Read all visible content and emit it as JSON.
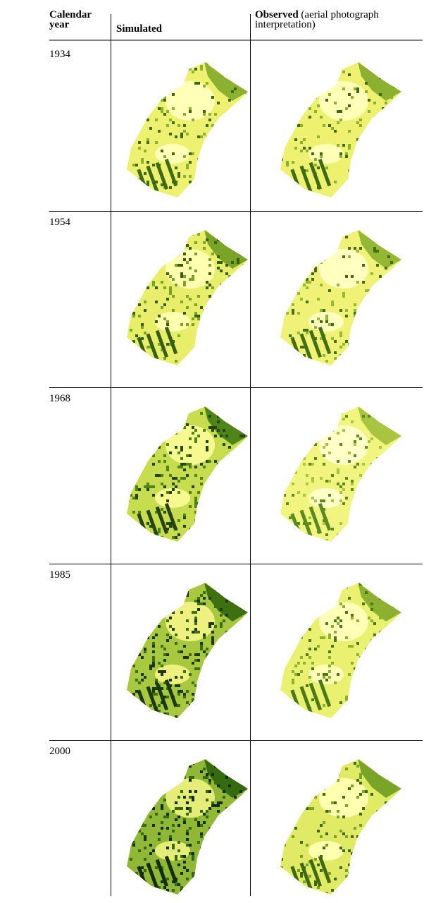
{
  "header": {
    "year": "Calendar year",
    "simulated": "Simulated",
    "observed": "Observed",
    "observed_note": "(aerial photograph interpretation)"
  },
  "rows": [
    {
      "year": "1934"
    },
    {
      "year": "1954"
    },
    {
      "year": "1968"
    },
    {
      "year": "1985"
    },
    {
      "year": "2000"
    }
  ]
}
